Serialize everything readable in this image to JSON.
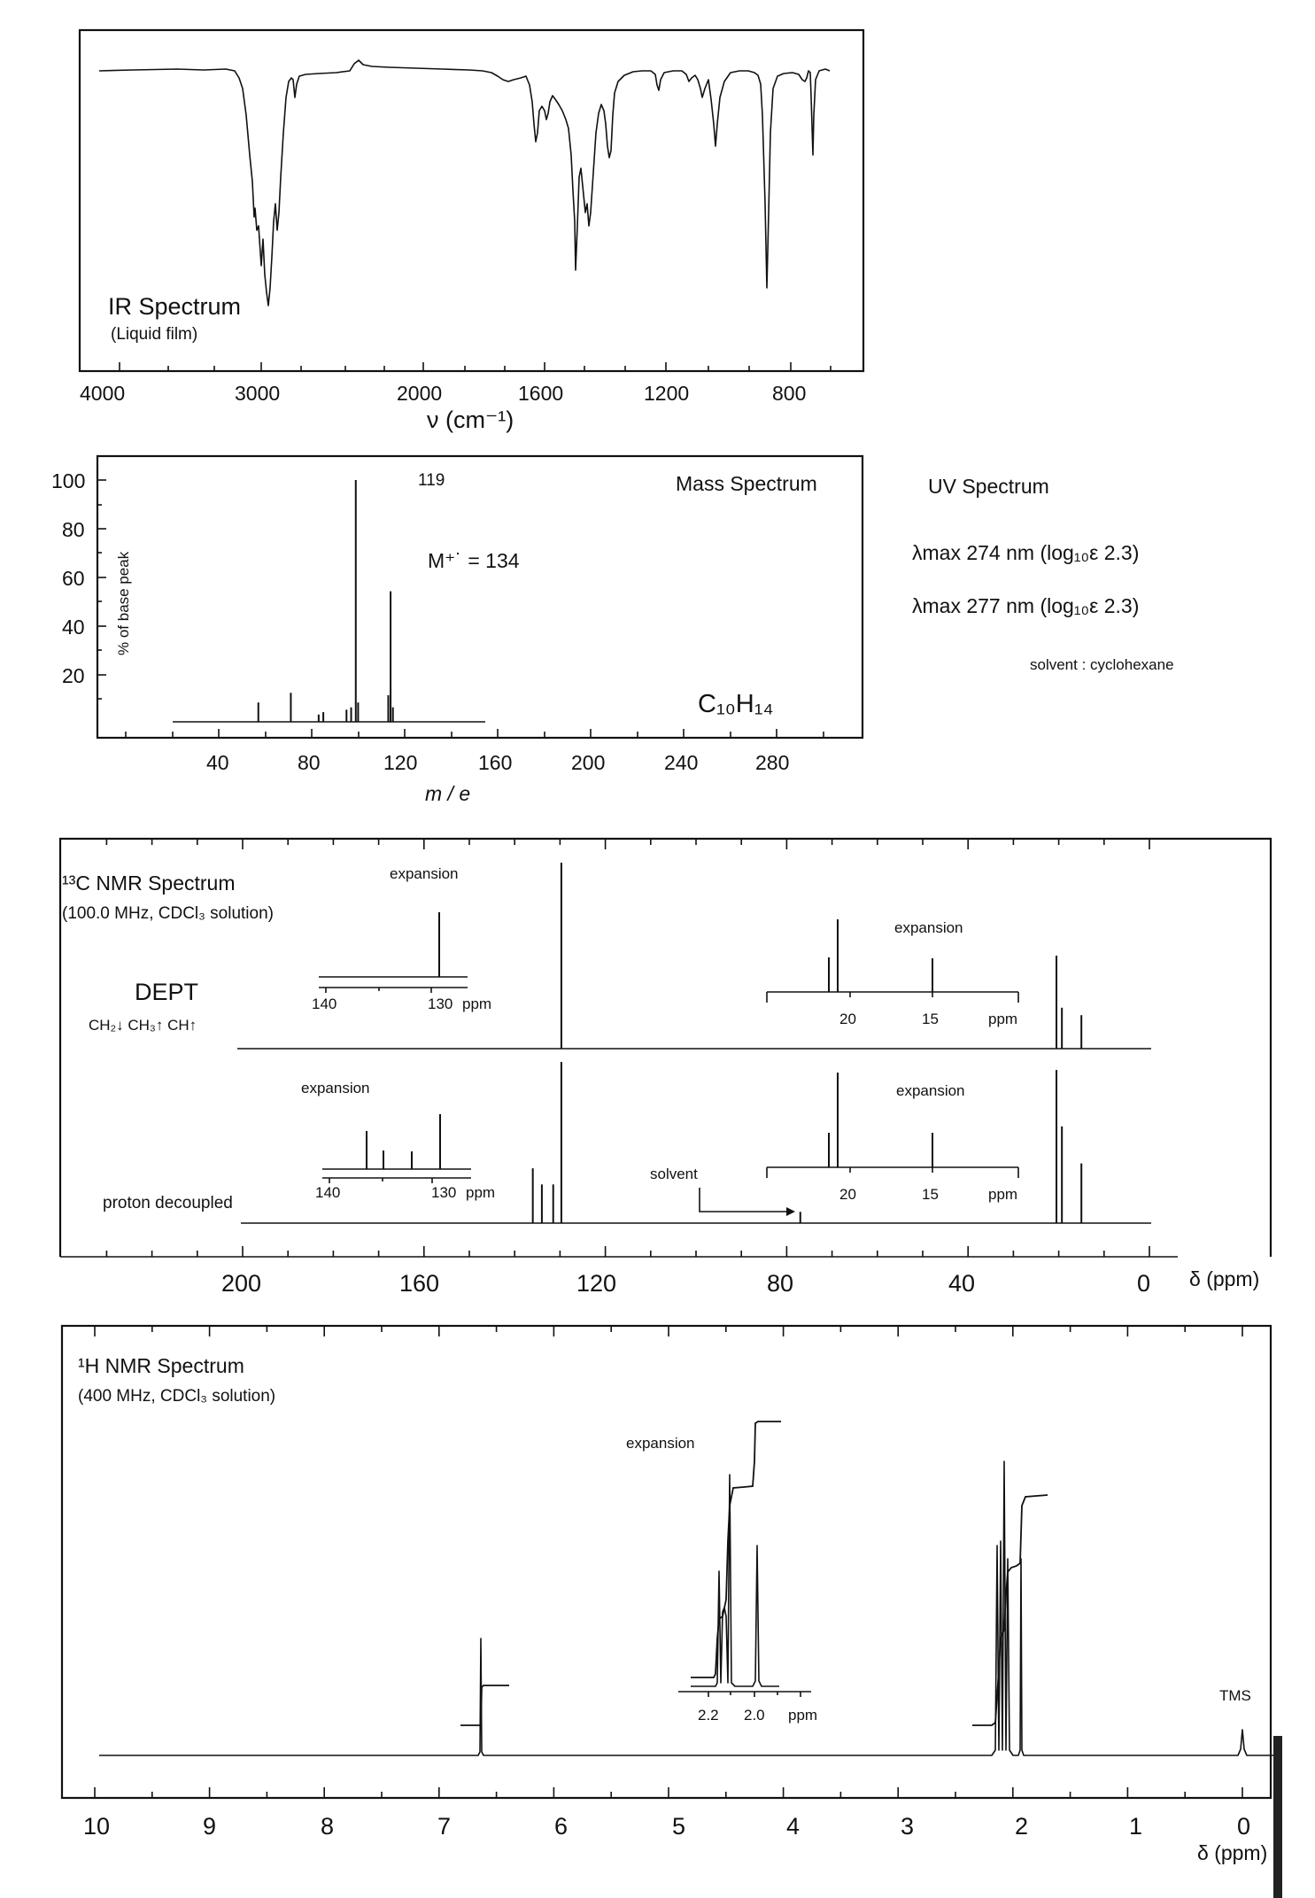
{
  "ir": {
    "title": "IR Spectrum",
    "subtitle": "(Liquid film)",
    "xlabel": "ν (cm⁻¹)",
    "ticks": [
      "4000",
      "3000",
      "2000",
      "1600",
      "1200",
      "800"
    ]
  },
  "mass": {
    "title": "Mass Spectrum",
    "ylabel": "% of base peak",
    "xlabel": "m / e",
    "yticks": [
      "100",
      "80",
      "60",
      "40",
      "20"
    ],
    "xticks": [
      "40",
      "80",
      "120",
      "160",
      "200",
      "240",
      "280"
    ],
    "base_peak_label": "119",
    "molecular_ion_label": "M⁺˙ = 134",
    "formula": "C₁₀H₁₄"
  },
  "uv": {
    "title": "UV Spectrum",
    "line1": "λmax 274 nm  (log₁₀ε  2.3)",
    "line2": "λmax 277 nm  (log₁₀ε  2.3)",
    "solvent": "solvent :  cyclohexane"
  },
  "c13": {
    "title": "¹³C NMR Spectrum",
    "subtitle": "(100.0 MHz, CDCl₃ solution)",
    "dept_label": "DEPT",
    "dept_legend": "CH₂↓  CH₃↑  CH↑",
    "decoupled_label": "proton decoupled",
    "solvent_label": "solvent",
    "expansion_label": "expansion",
    "ppm_label": "ppm",
    "xlabel": "δ (ppm)",
    "ticks": [
      "200",
      "160",
      "120",
      "80",
      "40",
      "0"
    ],
    "exp_left_ticks": [
      "140",
      "130"
    ],
    "exp_right_ticks": [
      "20",
      "15"
    ]
  },
  "h1": {
    "title": "¹H NMR Spectrum",
    "subtitle": "(400 MHz, CDCl₃ solution)",
    "expansion_label": "expansion",
    "tms_label": "TMS",
    "ppm_label": "ppm",
    "xlabel": "δ (ppm)",
    "ticks": [
      "10",
      "9",
      "8",
      "7",
      "6",
      "5",
      "4",
      "3",
      "2",
      "1",
      "0"
    ],
    "exp_ticks": [
      "2.2",
      "2.0"
    ]
  },
  "chart_data": [
    {
      "type": "line",
      "title": "IR Spectrum",
      "xlabel": "ν (cm⁻¹)",
      "xlim": [
        4000,
        650
      ],
      "x": [
        3850,
        3600,
        3400,
        3200,
        3100,
        3050,
        3020,
        3000,
        2980,
        2960,
        2920,
        2880,
        2860,
        2820,
        2800,
        2730,
        2700,
        2600,
        2500,
        2300,
        2000,
        1900,
        1800,
        1700,
        1640,
        1620,
        1600,
        1560,
        1500,
        1480,
        1450,
        1420,
        1380,
        1350,
        1300,
        1200,
        1150,
        1100,
        1050,
        1020,
        1000,
        950,
        880,
        860,
        820,
        780,
        740,
        700
      ],
      "y": [
        0.03,
        0.03,
        0.04,
        0.08,
        0.25,
        0.55,
        0.62,
        0.85,
        0.9,
        0.95,
        0.98,
        0.6,
        0.55,
        0.25,
        0.03,
        0.03,
        0.03,
        0.0,
        0.02,
        0.02,
        0.02,
        0.02,
        0.03,
        0.04,
        0.1,
        0.25,
        0.2,
        0.18,
        0.45,
        0.85,
        0.75,
        0.35,
        0.4,
        0.15,
        0.1,
        0.05,
        0.1,
        0.08,
        0.15,
        0.3,
        0.1,
        0.03,
        0.92,
        0.1,
        0.05,
        0.03,
        0.35,
        0.02
      ],
      "yunit": "relative absorbance (transmittance dips)"
    },
    {
      "type": "bar",
      "title": "Mass Spectrum",
      "xlabel": "m / e",
      "ylabel": "% of base peak",
      "xlim": [
        0,
        300
      ],
      "ylim": [
        0,
        100
      ],
      "x": [
        77,
        91,
        103,
        105,
        115,
        117,
        119,
        120,
        133,
        134,
        135
      ],
      "values": [
        8,
        12,
        3,
        4,
        5,
        6,
        100,
        8,
        11,
        54,
        6
      ]
    },
    {
      "type": "bar",
      "title": "¹³C NMR Spectrum (DEPT)",
      "xlabel": "δ (ppm)",
      "xlim": [
        200,
        0
      ],
      "x": [
        129.7,
        20.5,
        19.3,
        15.0
      ],
      "values": [
        100,
        50,
        22,
        18
      ]
    },
    {
      "type": "bar",
      "title": "¹³C NMR Spectrum (proton decoupled)",
      "xlabel": "δ (ppm)",
      "xlim": [
        200,
        0
      ],
      "x": [
        136.0,
        134.0,
        131.5,
        129.7,
        77.0,
        20.5,
        19.3,
        15.0
      ],
      "values": [
        34,
        24,
        24,
        100,
        7,
        95,
        60,
        37
      ]
    },
    {
      "type": "line",
      "title": "¹H NMR Spectrum",
      "xlabel": "δ (ppm)",
      "xlim": [
        10,
        0
      ],
      "x": [
        6.7,
        2.18,
        2.15,
        2.13,
        2.0,
        0
      ],
      "values": [
        52,
        40,
        92,
        40,
        55,
        5
      ],
      "integrals": [
        {
          "x": [
            6.8,
            6.6
          ],
          "height": 2
        },
        {
          "x": [
            2.25,
            1.95
          ],
          "height": 12
        }
      ]
    }
  ]
}
